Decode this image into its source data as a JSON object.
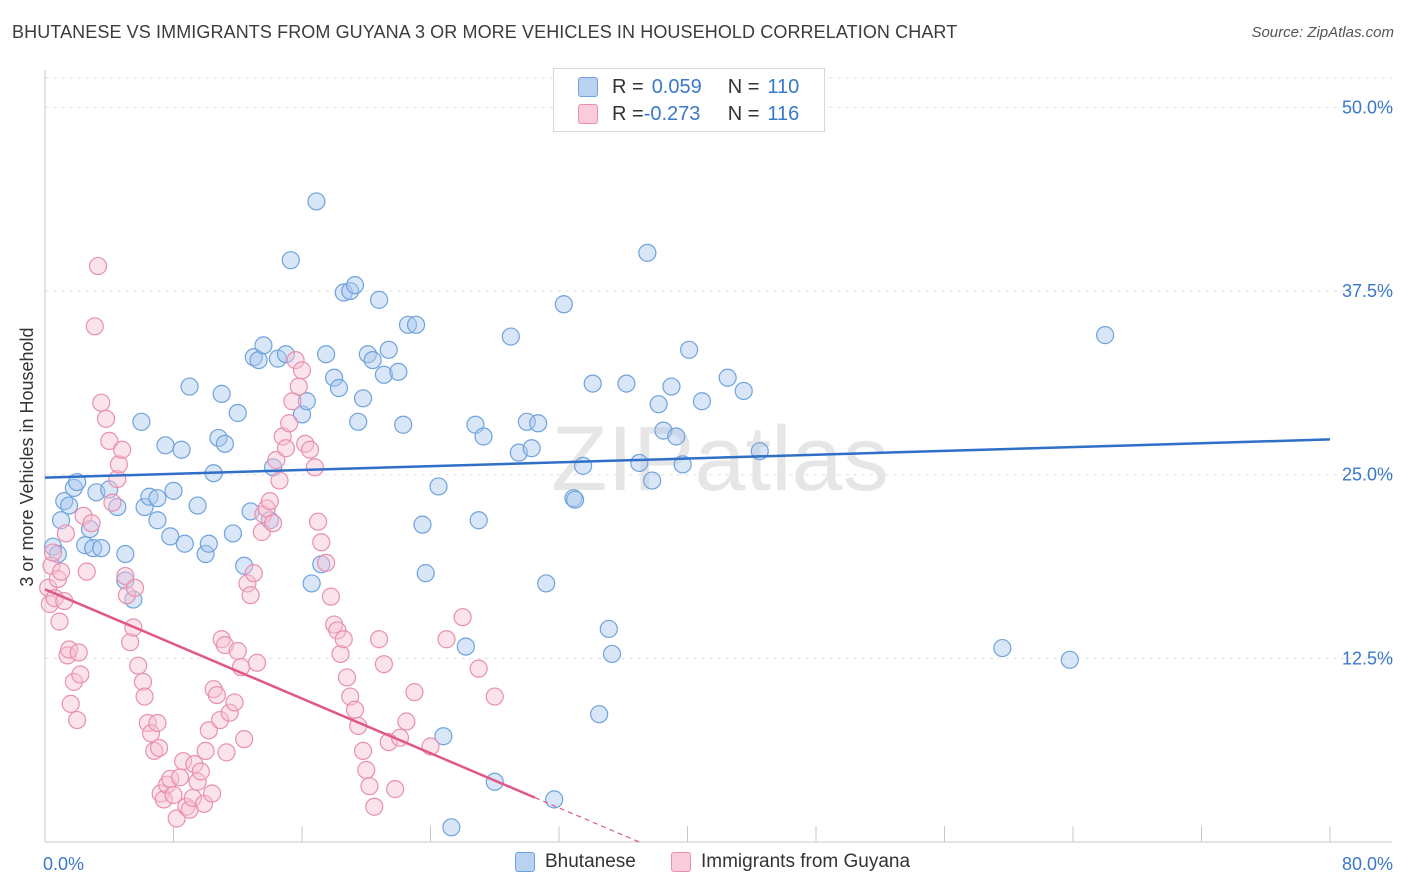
{
  "chart_data": {
    "type": "scatter",
    "title": "BHUTANESE VS IMMIGRANTS FROM GUYANA 3 OR MORE VEHICLES IN HOUSEHOLD CORRELATION CHART",
    "source": "Source: ZipAtlas.com",
    "ylabel": "3 or more Vehicles in Household",
    "xlabel": "",
    "xlim": [
      0,
      80
    ],
    "ylim": [
      0,
      52
    ],
    "x_tick_labels": [
      "0.0%",
      "80.0%"
    ],
    "y_ticks": [
      12.5,
      25.0,
      37.5,
      50.0
    ],
    "y_tick_labels": [
      "12.5%",
      "25.0%",
      "37.5%",
      "50.0%"
    ],
    "grid": true,
    "watermark": "ZIPatlas",
    "legend_stats": [
      {
        "r_label": "R =",
        "r_value": "0.059",
        "n_label": "N =",
        "n_value": "110"
      },
      {
        "r_label": "R =",
        "r_value": "-0.273",
        "n_label": "N =",
        "n_value": "116"
      }
    ],
    "series": [
      {
        "name": "Bhutanese",
        "color": "#6fa3dd",
        "fill": "#a9c8ee",
        "line_color": "#2f6fc7",
        "trend": {
          "x0": 0,
          "y0": 24.8,
          "x1": 80,
          "y1": 27.4,
          "solid_until": 80
        },
        "points": [
          [
            0.5,
            20.1
          ],
          [
            0.8,
            19.6
          ],
          [
            1.0,
            21.9
          ],
          [
            1.2,
            23.2
          ],
          [
            1.5,
            22.9
          ],
          [
            1.8,
            24.1
          ],
          [
            2.0,
            24.5
          ],
          [
            2.5,
            20.2
          ],
          [
            2.8,
            21.3
          ],
          [
            3.0,
            20.0
          ],
          [
            3.2,
            23.8
          ],
          [
            3.5,
            20.0
          ],
          [
            4.0,
            24.0
          ],
          [
            4.5,
            22.8
          ],
          [
            5.0,
            19.6
          ],
          [
            5.0,
            17.8
          ],
          [
            5.5,
            16.5
          ],
          [
            6.0,
            28.6
          ],
          [
            6.2,
            22.8
          ],
          [
            6.5,
            23.5
          ],
          [
            7.0,
            23.4
          ],
          [
            7.0,
            21.9
          ],
          [
            7.5,
            27.0
          ],
          [
            7.8,
            20.8
          ],
          [
            8.0,
            23.9
          ],
          [
            8.5,
            26.7
          ],
          [
            8.7,
            20.3
          ],
          [
            9.0,
            31.0
          ],
          [
            9.5,
            22.9
          ],
          [
            10.0,
            19.6
          ],
          [
            10.2,
            20.3
          ],
          [
            10.5,
            25.1
          ],
          [
            10.8,
            27.5
          ],
          [
            11.0,
            30.5
          ],
          [
            11.2,
            27.1
          ],
          [
            11.7,
            21.0
          ],
          [
            12.0,
            29.2
          ],
          [
            12.4,
            18.8
          ],
          [
            12.8,
            22.5
          ],
          [
            13.0,
            33.0
          ],
          [
            13.3,
            32.8
          ],
          [
            13.6,
            33.8
          ],
          [
            14.0,
            21.9
          ],
          [
            14.2,
            25.5
          ],
          [
            14.5,
            32.9
          ],
          [
            15.0,
            33.2
          ],
          [
            15.3,
            39.6
          ],
          [
            16.0,
            29.1
          ],
          [
            16.3,
            30.0
          ],
          [
            16.6,
            17.6
          ],
          [
            16.9,
            43.6
          ],
          [
            17.2,
            18.9
          ],
          [
            17.5,
            33.2
          ],
          [
            18.0,
            31.6
          ],
          [
            18.3,
            30.9
          ],
          [
            18.6,
            37.4
          ],
          [
            19.0,
            37.5
          ],
          [
            19.3,
            37.9
          ],
          [
            19.5,
            28.6
          ],
          [
            19.8,
            30.2
          ],
          [
            20.1,
            33.2
          ],
          [
            20.4,
            32.8
          ],
          [
            20.8,
            36.9
          ],
          [
            21.1,
            31.8
          ],
          [
            21.4,
            33.5
          ],
          [
            22.0,
            32.0
          ],
          [
            22.3,
            28.4
          ],
          [
            22.6,
            35.2
          ],
          [
            23.1,
            35.2
          ],
          [
            23.5,
            21.6
          ],
          [
            23.7,
            18.3
          ],
          [
            24.5,
            24.2
          ],
          [
            24.8,
            7.2
          ],
          [
            25.3,
            1.0
          ],
          [
            26.2,
            13.3
          ],
          [
            26.8,
            28.4
          ],
          [
            27.0,
            21.9
          ],
          [
            27.3,
            27.6
          ],
          [
            28.0,
            4.1
          ],
          [
            29.0,
            34.4
          ],
          [
            29.5,
            26.5
          ],
          [
            30.0,
            28.6
          ],
          [
            30.3,
            26.8
          ],
          [
            30.7,
            28.5
          ],
          [
            31.2,
            17.6
          ],
          [
            31.7,
            2.9
          ],
          [
            32.3,
            36.6
          ],
          [
            33.5,
            25.6
          ],
          [
            32.9,
            23.4
          ],
          [
            33.0,
            23.3
          ],
          [
            34.1,
            31.2
          ],
          [
            34.5,
            8.7
          ],
          [
            35.1,
            14.5
          ],
          [
            35.3,
            12.8
          ],
          [
            36.2,
            31.2
          ],
          [
            37.0,
            25.8
          ],
          [
            37.5,
            40.1
          ],
          [
            37.8,
            24.6
          ],
          [
            38.2,
            29.8
          ],
          [
            38.5,
            28.0
          ],
          [
            39.0,
            31.0
          ],
          [
            39.3,
            27.6
          ],
          [
            39.7,
            25.7
          ],
          [
            40.1,
            33.5
          ],
          [
            40.9,
            30.0
          ],
          [
            42.5,
            31.6
          ],
          [
            43.5,
            30.7
          ],
          [
            44.5,
            26.6
          ],
          [
            59.6,
            13.2
          ],
          [
            63.8,
            12.4
          ],
          [
            66.0,
            34.5
          ]
        ]
      },
      {
        "name": "Immigrants from Guyana",
        "color": "#e98fb0",
        "fill": "#f6c2d4",
        "line_color": "#e0578a",
        "trend": {
          "x0": 0,
          "y0": 17.2,
          "x1": 37,
          "y1": 0,
          "solid_until": 30.5
        },
        "points": [
          [
            0.2,
            17.3
          ],
          [
            0.3,
            16.2
          ],
          [
            0.4,
            18.8
          ],
          [
            0.5,
            19.7
          ],
          [
            0.6,
            16.6
          ],
          [
            0.8,
            17.9
          ],
          [
            0.9,
            15.0
          ],
          [
            1.0,
            18.4
          ],
          [
            1.2,
            16.4
          ],
          [
            1.3,
            21.0
          ],
          [
            1.4,
            12.7
          ],
          [
            1.5,
            13.1
          ],
          [
            1.6,
            9.4
          ],
          [
            1.8,
            10.9
          ],
          [
            2.0,
            8.3
          ],
          [
            2.1,
            12.9
          ],
          [
            2.2,
            11.4
          ],
          [
            2.4,
            22.2
          ],
          [
            2.6,
            18.4
          ],
          [
            2.9,
            21.7
          ],
          [
            3.1,
            35.1
          ],
          [
            3.3,
            39.2
          ],
          [
            3.5,
            29.9
          ],
          [
            3.8,
            28.8
          ],
          [
            4.0,
            27.3
          ],
          [
            4.2,
            23.1
          ],
          [
            4.5,
            24.7
          ],
          [
            4.6,
            25.7
          ],
          [
            4.8,
            26.7
          ],
          [
            5.0,
            18.1
          ],
          [
            5.1,
            16.8
          ],
          [
            5.3,
            13.6
          ],
          [
            5.5,
            14.6
          ],
          [
            5.6,
            17.3
          ],
          [
            5.8,
            12.0
          ],
          [
            6.1,
            10.9
          ],
          [
            6.2,
            9.9
          ],
          [
            6.4,
            8.1
          ],
          [
            6.6,
            7.4
          ],
          [
            6.8,
            6.2
          ],
          [
            7.0,
            8.1
          ],
          [
            7.1,
            6.4
          ],
          [
            7.2,
            3.3
          ],
          [
            7.4,
            2.9
          ],
          [
            7.6,
            3.9
          ],
          [
            7.8,
            4.3
          ],
          [
            8.0,
            3.2
          ],
          [
            8.2,
            1.6
          ],
          [
            8.4,
            4.4
          ],
          [
            8.6,
            5.5
          ],
          [
            8.8,
            2.4
          ],
          [
            9.0,
            2.2
          ],
          [
            9.2,
            3.0
          ],
          [
            9.3,
            5.3
          ],
          [
            9.5,
            4.1
          ],
          [
            9.7,
            4.8
          ],
          [
            9.9,
            2.6
          ],
          [
            10.0,
            6.2
          ],
          [
            10.2,
            7.6
          ],
          [
            10.4,
            3.3
          ],
          [
            10.5,
            10.4
          ],
          [
            10.7,
            10.0
          ],
          [
            10.9,
            8.3
          ],
          [
            11.0,
            13.8
          ],
          [
            11.2,
            13.4
          ],
          [
            11.3,
            6.1
          ],
          [
            11.5,
            8.8
          ],
          [
            11.8,
            9.5
          ],
          [
            12.0,
            13.0
          ],
          [
            12.2,
            11.9
          ],
          [
            12.4,
            7.0
          ],
          [
            12.6,
            17.6
          ],
          [
            12.8,
            16.8
          ],
          [
            13.0,
            18.3
          ],
          [
            13.2,
            12.2
          ],
          [
            13.5,
            21.1
          ],
          [
            13.6,
            22.3
          ],
          [
            13.8,
            22.7
          ],
          [
            14.0,
            23.2
          ],
          [
            14.2,
            21.7
          ],
          [
            14.4,
            26.0
          ],
          [
            14.6,
            24.6
          ],
          [
            14.8,
            27.6
          ],
          [
            15.0,
            26.8
          ],
          [
            15.2,
            28.5
          ],
          [
            15.4,
            30.0
          ],
          [
            15.6,
            32.8
          ],
          [
            15.8,
            31.0
          ],
          [
            16.0,
            32.1
          ],
          [
            16.2,
            27.1
          ],
          [
            16.5,
            26.7
          ],
          [
            16.8,
            25.5
          ],
          [
            17.0,
            21.8
          ],
          [
            17.2,
            20.4
          ],
          [
            17.5,
            19.0
          ],
          [
            17.8,
            16.7
          ],
          [
            18.0,
            14.8
          ],
          [
            18.2,
            14.4
          ],
          [
            18.4,
            12.8
          ],
          [
            18.6,
            13.8
          ],
          [
            18.8,
            11.2
          ],
          [
            19.0,
            9.9
          ],
          [
            19.3,
            9.0
          ],
          [
            19.5,
            7.9
          ],
          [
            19.8,
            6.2
          ],
          [
            20.0,
            4.9
          ],
          [
            20.2,
            3.8
          ],
          [
            20.5,
            2.4
          ],
          [
            20.8,
            13.8
          ],
          [
            21.1,
            12.1
          ],
          [
            21.4,
            6.8
          ],
          [
            21.8,
            3.6
          ],
          [
            22.1,
            7.1
          ],
          [
            22.5,
            8.2
          ],
          [
            23.0,
            10.2
          ],
          [
            24.0,
            6.5
          ],
          [
            25.0,
            13.8
          ],
          [
            26.0,
            15.3
          ],
          [
            27.0,
            11.8
          ],
          [
            28.0,
            9.9
          ]
        ]
      }
    ]
  },
  "bottom_legend": [
    {
      "label": "Bhutanese"
    },
    {
      "label": "Immigrants from Guyana"
    }
  ]
}
